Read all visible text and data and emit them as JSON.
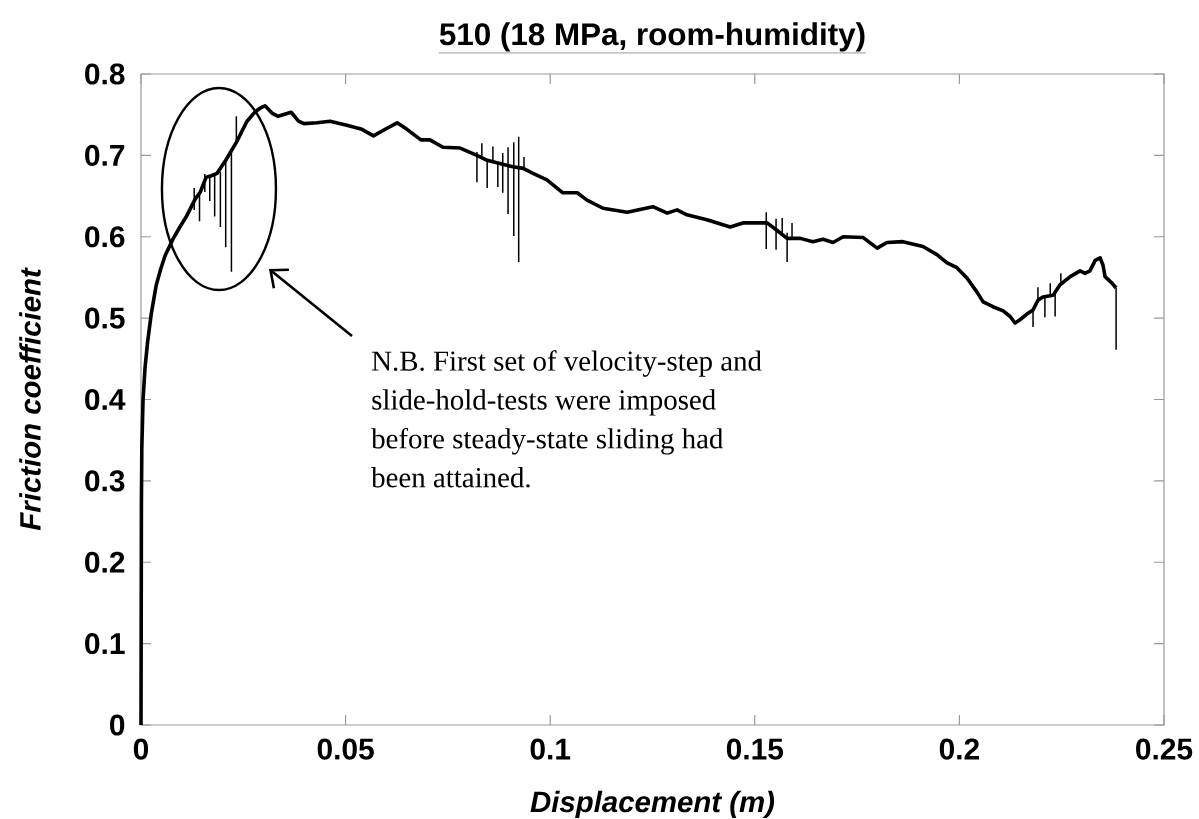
{
  "chart_data": {
    "type": "line",
    "title": "510 (18 MPa, room-humidity)",
    "xlabel": "Displacement (m)",
    "ylabel": "Friction coefficient",
    "xlim": [
      0,
      0.25
    ],
    "ylim": [
      0,
      0.8
    ],
    "xticks": [
      0,
      0.05,
      0.1,
      0.15,
      0.2,
      0.25
    ],
    "yticks": [
      0,
      0.1,
      0.2,
      0.3,
      0.4,
      0.5,
      0.6,
      0.7,
      0.8
    ],
    "annotations": [
      "N.B. First set of velocity-step and slide-hold-tests were imposed before steady-state sliding had been attained."
    ],
    "series": [
      {
        "color": "#000000",
        "x": [
          0,
          0.0001,
          0.0002,
          0.0005,
          0.001,
          0.0016,
          0.0025,
          0.0037,
          0.0048,
          0.0059,
          0.0079,
          0.0095,
          0.0111,
          0.0132,
          0.0145,
          0.0159,
          0.0172,
          0.0186,
          0.0207,
          0.0233,
          0.0259,
          0.028,
          0.0291,
          0.0303,
          0.032,
          0.0335,
          0.0367,
          0.0385,
          0.0398,
          0.043,
          0.0462,
          0.0503,
          0.054,
          0.0568,
          0.06,
          0.0626,
          0.065,
          0.0684,
          0.0706,
          0.0738,
          0.078,
          0.0821,
          0.0846,
          0.0877,
          0.0909,
          0.0934,
          0.0958,
          0.0992,
          0.1031,
          0.1066,
          0.109,
          0.1129,
          0.1188,
          0.1251,
          0.1286,
          0.131,
          0.1334,
          0.1383,
          0.144,
          0.1471,
          0.153,
          0.1554,
          0.1579,
          0.1611,
          0.1642,
          0.1667,
          0.1691,
          0.1716,
          0.1765,
          0.1799,
          0.1823,
          0.1862,
          0.1911,
          0.1945,
          0.197,
          0.1994,
          0.2019,
          0.2043,
          0.2058,
          0.2082,
          0.2107,
          0.2124,
          0.2136,
          0.2148,
          0.2165,
          0.218,
          0.2192,
          0.2204,
          0.2229,
          0.2246,
          0.2271,
          0.2295,
          0.2307,
          0.2319,
          0.2332,
          0.2344,
          0.2351,
          0.2356,
          0.2373,
          0.2383
        ],
        "values": [
          0,
          0.27,
          0.34,
          0.4,
          0.44,
          0.47,
          0.505,
          0.54,
          0.56,
          0.577,
          0.598,
          0.612,
          0.625,
          0.646,
          0.655,
          0.673,
          0.675,
          0.678,
          0.694,
          0.716,
          0.742,
          0.754,
          0.758,
          0.761,
          0.752,
          0.748,
          0.753,
          0.742,
          0.739,
          0.74,
          0.742,
          0.737,
          0.732,
          0.724,
          0.733,
          0.74,
          0.732,
          0.719,
          0.719,
          0.71,
          0.709,
          0.7,
          0.694,
          0.69,
          0.686,
          0.684,
          0.678,
          0.67,
          0.654,
          0.654,
          0.645,
          0.635,
          0.63,
          0.637,
          0.629,
          0.633,
          0.627,
          0.621,
          0.612,
          0.617,
          0.617,
          0.608,
          0.598,
          0.598,
          0.594,
          0.597,
          0.593,
          0.6,
          0.599,
          0.586,
          0.593,
          0.594,
          0.588,
          0.578,
          0.568,
          0.562,
          0.549,
          0.532,
          0.52,
          0.514,
          0.509,
          0.502,
          0.494,
          0.498,
          0.505,
          0.51,
          0.522,
          0.526,
          0.528,
          0.541,
          0.551,
          0.558,
          0.555,
          0.558,
          0.571,
          0.574,
          0.565,
          0.551,
          0.543,
          0.537
        ]
      },
      {
        "color": "#000000",
        "x": [
          0.013,
          0.013,
          null,
          0.0143,
          0.0143,
          null,
          0.0156,
          0.0156,
          null,
          0.0168,
          0.0168,
          null,
          0.018,
          0.018,
          null,
          0.0194,
          0.0194,
          null,
          0.0207,
          0.0207,
          null,
          0.0221,
          0.0221,
          null,
          0.0233,
          0.0233,
          null,
          0.0821,
          0.0821,
          null,
          0.0833,
          0.0833,
          null,
          0.0846,
          0.0846,
          null,
          0.086,
          0.086,
          null,
          0.0872,
          0.0872,
          null,
          0.0884,
          0.0884,
          null,
          0.0897,
          0.0897,
          null,
          0.0911,
          0.0911,
          null,
          0.0923,
          0.0923,
          null,
          0.0936,
          0.0936,
          null,
          0.1528,
          0.1528,
          null,
          0.1552,
          0.1552,
          null,
          0.1567,
          0.1567,
          null,
          0.1579,
          0.1579,
          null,
          0.1591,
          0.1591,
          null,
          0.218,
          0.218,
          null,
          0.2192,
          0.2192,
          null,
          0.2209,
          0.2209,
          null,
          0.2222,
          0.2222,
          null,
          0.2234,
          0.2234,
          null,
          0.2248,
          0.2248,
          null,
          0.2383,
          0.2383
        ],
        "values": [
          0.66,
          0.633,
          null,
          0.655,
          0.619,
          null,
          0.677,
          0.655,
          null,
          0.676,
          0.644,
          null,
          0.677,
          0.625,
          null,
          0.68,
          0.612,
          null,
          0.694,
          0.587,
          null,
          0.705,
          0.557,
          null,
          0.748,
          0.716,
          null,
          0.704,
          0.667,
          null,
          0.715,
          0.697,
          null,
          0.694,
          0.66,
          null,
          0.711,
          0.691,
          null,
          0.69,
          0.661,
          null,
          0.703,
          0.654,
          null,
          0.71,
          0.628,
          null,
          0.716,
          0.601,
          null,
          0.723,
          0.569,
          null,
          0.698,
          0.684,
          null,
          0.63,
          0.585,
          null,
          0.622,
          0.584,
          null,
          0.623,
          0.605,
          null,
          0.605,
          0.569,
          null,
          0.617,
          0.598,
          null,
          0.512,
          0.489,
          null,
          0.538,
          0.522,
          null,
          0.528,
          0.501,
          null,
          0.543,
          0.526,
          null,
          0.53,
          0.502,
          null,
          0.555,
          0.541,
          null,
          0.537,
          0.461
        ]
      }
    ]
  }
}
